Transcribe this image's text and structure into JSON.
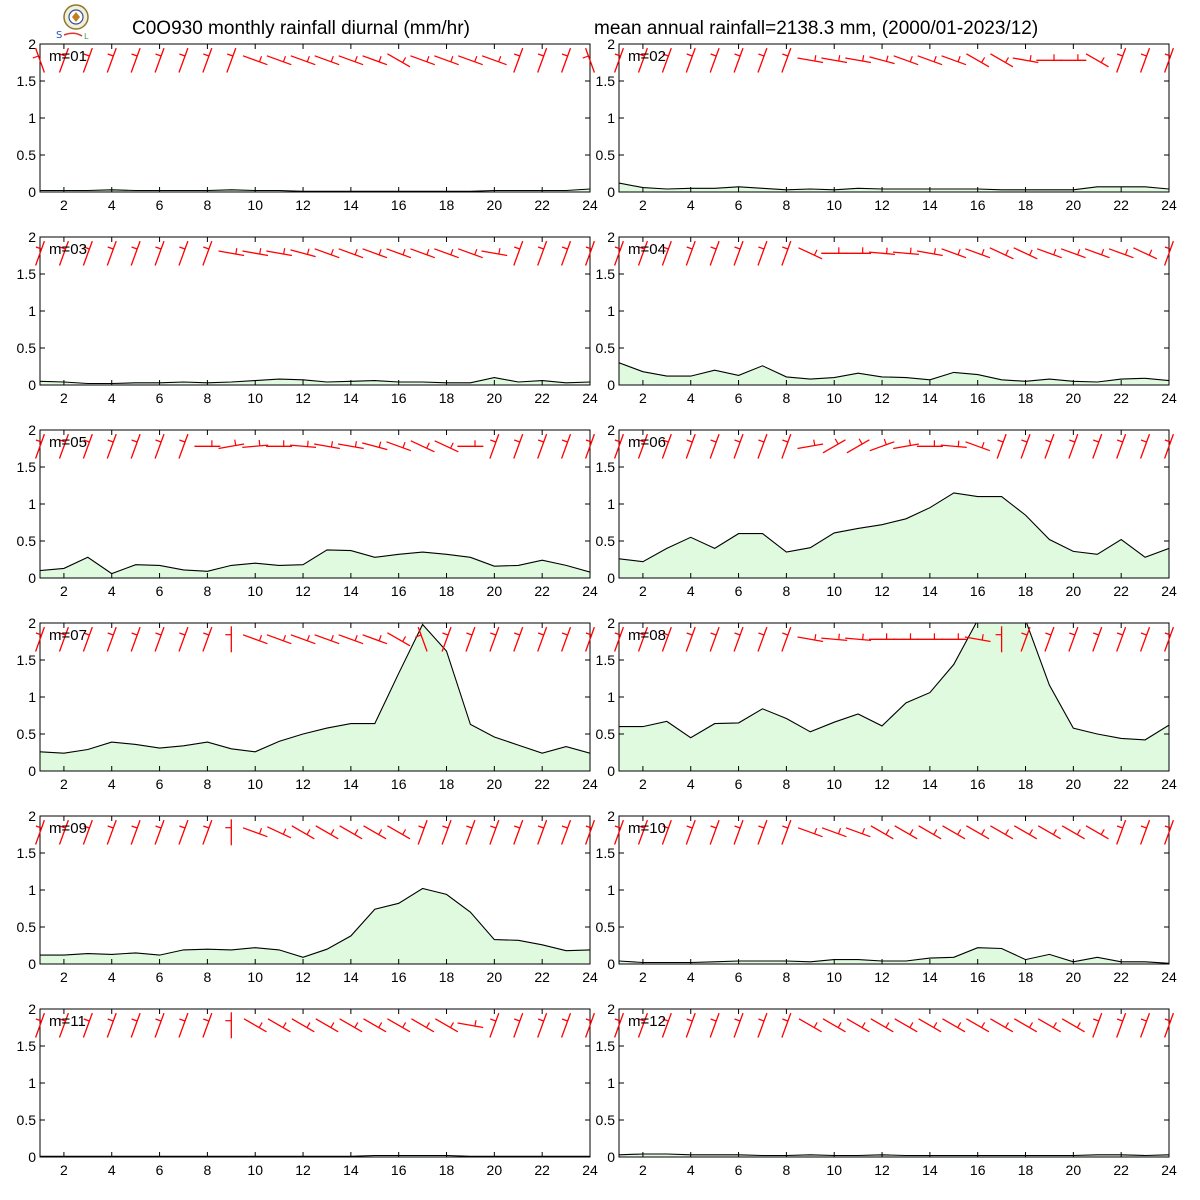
{
  "header": {
    "title_left": "C0O930 monthly rainfall diurnal (mm/hr)",
    "title_right": "mean annual rainfall=2138.3 mm, (2000/01-2023/12)"
  },
  "colors": {
    "fill": "#e0fae0",
    "line": "#000000",
    "barb": "#ff0000",
    "frame": "#000000"
  },
  "chart_data": {
    "type": "area",
    "xlim": [
      1,
      24
    ],
    "ylim": [
      0,
      2
    ],
    "x_ticks": [
      2,
      4,
      6,
      8,
      10,
      12,
      14,
      16,
      18,
      20,
      22,
      24
    ],
    "y_ticks": [
      0,
      0.5,
      1,
      1.5,
      2
    ],
    "y_tick_labels": [
      "0",
      "0.5",
      "1",
      "1.5",
      "2"
    ],
    "x": [
      1,
      2,
      3,
      4,
      5,
      6,
      7,
      8,
      9,
      10,
      11,
      12,
      13,
      14,
      15,
      16,
      17,
      18,
      19,
      20,
      21,
      22,
      23,
      24
    ],
    "panels": [
      {
        "label": "m=01",
        "values": [
          0.02,
          0.02,
          0.02,
          0.03,
          0.02,
          0.02,
          0.02,
          0.02,
          0.03,
          0.02,
          0.02,
          0.01,
          0.01,
          0.01,
          0.01,
          0.01,
          0.01,
          0.01,
          0.01,
          0.02,
          0.02,
          0.02,
          0.02,
          0.04
        ],
        "wind_dir": [
          340,
          20,
          20,
          20,
          20,
          20,
          20,
          20,
          20,
          110,
          110,
          110,
          110,
          110,
          110,
          120,
          110,
          110,
          110,
          110,
          20,
          20,
          20,
          340
        ]
      },
      {
        "label": "m=02",
        "values": [
          0.12,
          0.06,
          0.04,
          0.05,
          0.05,
          0.07,
          0.05,
          0.03,
          0.04,
          0.03,
          0.05,
          0.04,
          0.04,
          0.04,
          0.04,
          0.04,
          0.03,
          0.03,
          0.03,
          0.03,
          0.07,
          0.07,
          0.07,
          0.04
        ],
        "wind_dir": [
          20,
          20,
          20,
          20,
          20,
          20,
          20,
          20,
          100,
          100,
          100,
          105,
          110,
          110,
          110,
          120,
          120,
          100,
          90,
          90,
          120,
          20,
          20,
          20
        ]
      },
      {
        "label": "m=03",
        "values": [
          0.05,
          0.04,
          0.02,
          0.02,
          0.03,
          0.03,
          0.04,
          0.03,
          0.04,
          0.06,
          0.08,
          0.07,
          0.04,
          0.05,
          0.06,
          0.04,
          0.04,
          0.03,
          0.03,
          0.1,
          0.04,
          0.06,
          0.03,
          0.04
        ],
        "wind_dir": [
          20,
          20,
          20,
          20,
          20,
          20,
          20,
          20,
          100,
          100,
          100,
          105,
          110,
          110,
          110,
          110,
          110,
          110,
          110,
          100,
          20,
          20,
          20,
          20
        ]
      },
      {
        "label": "m=04",
        "values": [
          0.3,
          0.18,
          0.12,
          0.12,
          0.2,
          0.13,
          0.26,
          0.11,
          0.08,
          0.1,
          0.16,
          0.11,
          0.1,
          0.07,
          0.17,
          0.14,
          0.07,
          0.05,
          0.08,
          0.05,
          0.04,
          0.08,
          0.09,
          0.06
        ],
        "wind_dir": [
          20,
          20,
          20,
          20,
          20,
          20,
          20,
          20,
          115,
          90,
          90,
          95,
          95,
          100,
          110,
          110,
          115,
          115,
          110,
          110,
          110,
          110,
          115,
          20
        ]
      },
      {
        "label": "m=05",
        "values": [
          0.1,
          0.13,
          0.28,
          0.06,
          0.18,
          0.17,
          0.11,
          0.09,
          0.17,
          0.2,
          0.17,
          0.18,
          0.38,
          0.37,
          0.28,
          0.32,
          0.35,
          0.32,
          0.28,
          0.16,
          0.17,
          0.24,
          0.17,
          0.08
        ],
        "wind_dir": [
          20,
          20,
          20,
          20,
          20,
          20,
          20,
          90,
          80,
          85,
          90,
          95,
          100,
          100,
          105,
          110,
          115,
          115,
          90,
          20,
          20,
          20,
          20,
          20
        ]
      },
      {
        "label": "m=06",
        "values": [
          0.26,
          0.22,
          0.4,
          0.55,
          0.4,
          0.6,
          0.6,
          0.35,
          0.41,
          0.61,
          0.67,
          0.72,
          0.8,
          0.95,
          1.15,
          1.1,
          1.1,
          0.85,
          0.52,
          0.36,
          0.32,
          0.52,
          0.28,
          0.4
        ],
        "wind_dir": [
          20,
          20,
          20,
          20,
          20,
          20,
          20,
          20,
          80,
          60,
          60,
          70,
          80,
          90,
          95,
          110,
          20,
          20,
          20,
          20,
          20,
          20,
          20,
          20
        ]
      },
      {
        "label": "m=07",
        "values": [
          0.26,
          0.24,
          0.29,
          0.39,
          0.36,
          0.31,
          0.34,
          0.39,
          0.3,
          0.26,
          0.4,
          0.5,
          0.58,
          0.64,
          0.64,
          1.32,
          1.98,
          1.62,
          0.63,
          0.46,
          0.35,
          0.24,
          0.33,
          0.24
        ],
        "wind_dir": [
          20,
          20,
          20,
          20,
          20,
          20,
          20,
          20,
          0,
          110,
          110,
          110,
          110,
          110,
          110,
          120,
          340,
          20,
          20,
          20,
          20,
          20,
          20,
          20
        ]
      },
      {
        "label": "m=08",
        "values": [
          0.6,
          0.6,
          0.67,
          0.45,
          0.64,
          0.65,
          0.84,
          0.71,
          0.53,
          0.66,
          0.77,
          0.61,
          0.92,
          1.06,
          1.44,
          2.04,
          2.4,
          2.04,
          1.16,
          0.58,
          0.5,
          0.44,
          0.42,
          0.62
        ],
        "wind_dir": [
          20,
          20,
          20,
          20,
          20,
          20,
          20,
          20,
          100,
          95,
          95,
          90,
          90,
          90,
          90,
          100,
          0,
          20,
          20,
          20,
          20,
          20,
          20,
          20
        ]
      },
      {
        "label": "m=09",
        "values": [
          0.12,
          0.12,
          0.14,
          0.13,
          0.15,
          0.12,
          0.19,
          0.2,
          0.19,
          0.22,
          0.19,
          0.09,
          0.2,
          0.38,
          0.74,
          0.82,
          1.02,
          0.94,
          0.7,
          0.33,
          0.32,
          0.26,
          0.18,
          0.19
        ],
        "wind_dir": [
          20,
          20,
          20,
          20,
          20,
          20,
          20,
          20,
          0,
          110,
          115,
          120,
          120,
          120,
          120,
          120,
          20,
          20,
          20,
          20,
          20,
          20,
          20,
          20
        ]
      },
      {
        "label": "m=10",
        "values": [
          0.04,
          0.02,
          0.02,
          0.02,
          0.03,
          0.04,
          0.04,
          0.04,
          0.03,
          0.06,
          0.06,
          0.04,
          0.04,
          0.08,
          0.09,
          0.22,
          0.21,
          0.06,
          0.13,
          0.03,
          0.09,
          0.03,
          0.03,
          0.01
        ],
        "wind_dir": [
          20,
          20,
          20,
          20,
          20,
          20,
          20,
          20,
          110,
          110,
          110,
          120,
          120,
          120,
          120,
          120,
          120,
          120,
          120,
          120,
          120,
          20,
          20,
          20
        ]
      },
      {
        "label": "m=11",
        "values": [
          0.01,
          0.01,
          0.01,
          0.01,
          0.01,
          0.01,
          0.01,
          0.01,
          0.01,
          0.01,
          0.01,
          0.01,
          0.01,
          0.01,
          0.02,
          0.02,
          0.02,
          0.02,
          0.01,
          0.01,
          0.01,
          0.01,
          0.01,
          0.01
        ],
        "wind_dir": [
          20,
          20,
          20,
          20,
          20,
          20,
          20,
          20,
          0,
          120,
          120,
          120,
          120,
          120,
          120,
          120,
          120,
          120,
          100,
          20,
          20,
          20,
          20,
          20
        ]
      },
      {
        "label": "m=12",
        "values": [
          0.03,
          0.04,
          0.04,
          0.03,
          0.03,
          0.03,
          0.02,
          0.02,
          0.03,
          0.02,
          0.02,
          0.03,
          0.02,
          0.02,
          0.02,
          0.02,
          0.02,
          0.02,
          0.02,
          0.02,
          0.03,
          0.03,
          0.02,
          0.03
        ],
        "wind_dir": [
          20,
          20,
          20,
          20,
          20,
          20,
          20,
          20,
          120,
          120,
          120,
          120,
          120,
          120,
          120,
          120,
          120,
          120,
          120,
          120,
          20,
          20,
          20,
          20
        ]
      }
    ]
  }
}
